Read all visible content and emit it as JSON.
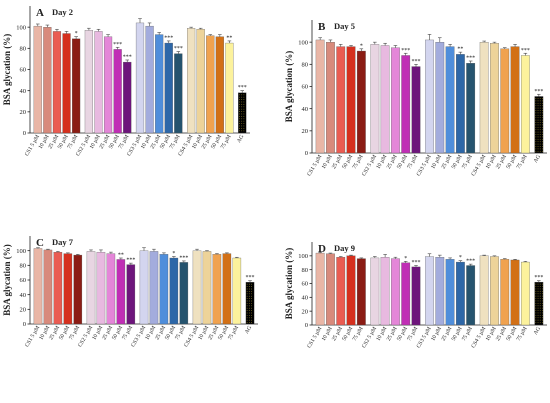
{
  "colors": [
    "#e9b6a6",
    "#d88a7c",
    "#ea5c52",
    "#d5301e",
    "#8b1c14",
    "#e8d5e2",
    "#e8b9e0",
    "#e486d8",
    "#c02eb5",
    "#6d157b",
    "#d3d5ef",
    "#a3acdd",
    "#4f8edb",
    "#2d67a8",
    "#25536e",
    "#efe1c0",
    "#edd399",
    "#f0a24f",
    "#d27016",
    "#fcf29c"
  ],
  "chart_data": [
    {
      "type": "bar",
      "panel": "A",
      "day_label": "Day 2",
      "ylabel": "BSA glycation (%)",
      "ylim": [
        0,
        120
      ],
      "yticks": [
        0,
        20,
        40,
        60,
        80,
        100
      ],
      "categories": [
        "CS1 5 µM",
        "10 µM",
        "25 µM",
        "50 µM",
        "75 µM",
        "CS2 5 µM",
        "10 µM",
        "25 µM",
        "50 µM",
        "75 µM",
        "CS3 5 µM",
        "10 µM",
        "25 µM",
        "50 µM",
        "75 µM",
        "CS4 5 µM",
        "10 µM",
        "25 µM",
        "50 µM",
        "75 µM",
        "AG"
      ],
      "values": [
        101,
        100,
        96,
        94,
        89,
        97,
        96,
        91,
        79,
        67,
        104,
        101,
        93,
        85,
        75,
        99,
        98,
        92,
        91,
        85,
        38
      ],
      "errors": [
        2,
        2,
        2,
        2,
        2,
        2,
        2,
        2,
        2,
        2,
        4,
        3,
        2,
        2,
        2,
        1,
        1,
        1,
        2,
        2,
        2
      ],
      "significance": [
        "",
        "",
        "",
        "",
        "*",
        "",
        "",
        "",
        "***",
        "***",
        "",
        "",
        "",
        "***",
        "***",
        "",
        "",
        "",
        "",
        "**",
        "***"
      ]
    },
    {
      "type": "bar",
      "panel": "B",
      "day_label": "Day 5",
      "ylabel": "BSA glycation (%)",
      "ylim": [
        0,
        120
      ],
      "yticks": [
        0,
        20,
        40,
        60,
        80,
        100
      ],
      "categories": [
        "CS1 5 µM",
        "10 µM",
        "25 µM",
        "50 µM",
        "75 µM",
        "CS2 5 µM",
        "10 µM",
        "25 µM",
        "50 µM",
        "75 µM",
        "CS3 5 µM",
        "10 µM",
        "25 µM",
        "50 µM",
        "75 µM",
        "CS4 5 µM",
        "10 µM",
        "25 µM",
        "50 µM",
        "75 µM",
        "AG"
      ],
      "values": [
        102,
        100,
        96,
        96,
        92,
        98,
        97,
        95,
        88,
        78,
        102,
        100,
        96,
        89,
        81,
        100,
        99,
        94,
        96,
        88,
        51
      ],
      "errors": [
        2,
        2,
        2,
        1,
        2,
        2,
        2,
        2,
        2,
        2,
        5,
        4,
        2,
        2,
        2,
        1,
        1,
        1,
        2,
        2,
        2
      ],
      "significance": [
        "",
        "",
        "",
        "",
        "*",
        "",
        "",
        "",
        "***",
        "***",
        "",
        "",
        "",
        "**",
        "***",
        "",
        "",
        "",
        "",
        "***",
        "***"
      ]
    },
    {
      "type": "bar",
      "panel": "C",
      "day_label": "Day 7",
      "ylabel": "BSA glycation (%)",
      "ylim": [
        0,
        120
      ],
      "yticks": [
        0,
        20,
        40,
        60,
        80,
        100
      ],
      "categories": [
        "CS1 5 µM",
        "10 µM",
        "25 µM",
        "50 µM",
        "75 µM",
        "CS2 5 µM",
        "10 µM",
        "25 µM",
        "50 µM",
        "75 µM",
        "CS3 5 µM",
        "10 µM",
        "25 µM",
        "50 µM",
        "75 µM",
        "CS4 5 µM",
        "10 µM",
        "25 µM",
        "50 µM",
        "75 µM",
        "AG"
      ],
      "values": [
        103,
        101,
        98,
        96,
        94,
        99,
        98,
        96,
        88,
        81,
        100,
        99,
        95,
        90,
        84,
        100,
        99,
        95,
        96,
        90,
        57
      ],
      "errors": [
        1,
        1,
        1,
        1,
        1,
        2,
        3,
        2,
        2,
        2,
        4,
        3,
        2,
        2,
        2,
        2,
        1,
        1,
        1,
        1,
        2
      ],
      "significance": [
        "",
        "",
        "",
        "",
        "",
        "",
        "",
        "",
        "**",
        "***",
        "",
        "",
        "",
        "*",
        "***",
        "",
        "",
        "",
        "",
        "",
        "***"
      ]
    },
    {
      "type": "bar",
      "panel": "D",
      "day_label": "Day 9",
      "ylabel": "BSA glycation (%)",
      "ylim": [
        0,
        120
      ],
      "yticks": [
        0,
        20,
        40,
        60,
        80,
        100
      ],
      "categories": [
        "CS1 5 µM",
        "10 µM",
        "25 µM",
        "50 µM",
        "75 µM",
        "CS2 5 µM",
        "10 µM",
        "25 µM",
        "50 µM",
        "75 µM",
        "CS3 5 µM",
        "10 µM",
        "25 µM",
        "50 µM",
        "75 µM",
        "CS4 5 µM",
        "10 µM",
        "25 µM",
        "50 µM",
        "75 µM",
        "AG"
      ],
      "values": [
        104,
        103,
        98,
        100,
        96,
        97,
        98,
        96,
        90,
        84,
        99,
        98,
        95,
        91,
        86,
        100,
        99,
        95,
        94,
        91,
        62
      ],
      "errors": [
        1,
        1,
        1,
        1,
        1,
        2,
        4,
        2,
        2,
        2,
        4,
        3,
        2,
        2,
        2,
        1,
        1,
        1,
        1,
        1,
        2
      ],
      "significance": [
        "",
        "",
        "",
        "",
        "",
        "",
        "",
        "",
        "*",
        "***",
        "",
        "",
        "",
        "*",
        "***",
        "",
        "",
        "",
        "",
        "",
        "***"
      ]
    }
  ]
}
